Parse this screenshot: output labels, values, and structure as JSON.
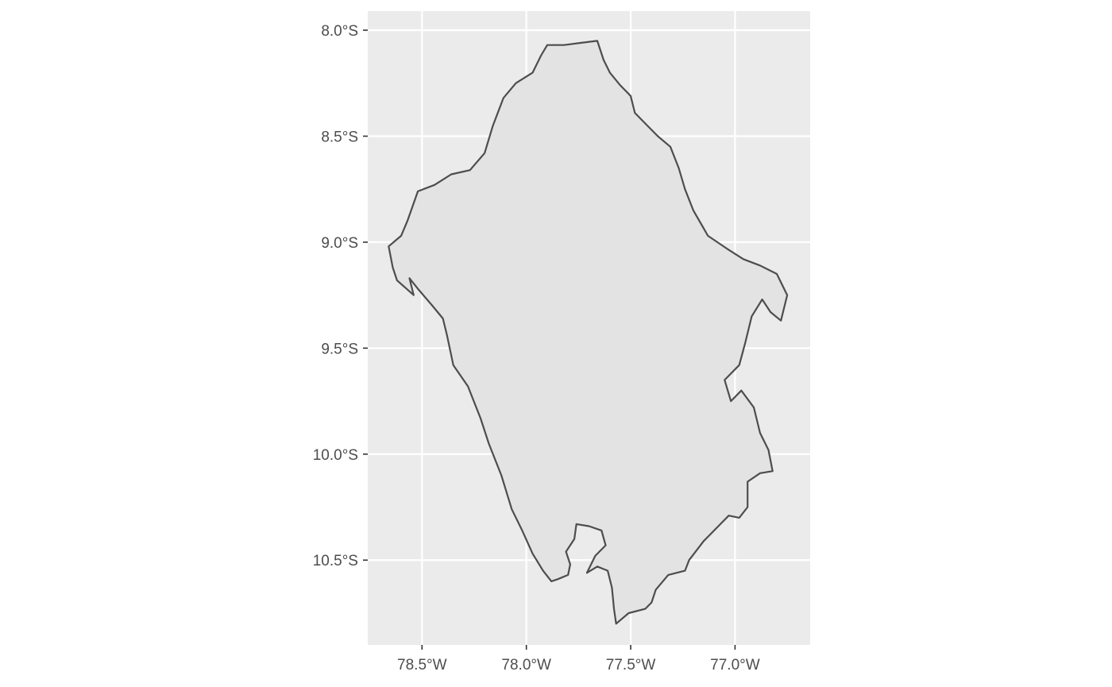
{
  "colors": {
    "panel_background": "#ebebeb",
    "grid": "#ffffff",
    "region_fill": "#e3e3e3",
    "region_outline": "#4d4d4d",
    "tick_text": "#4d4d4d"
  },
  "map": {
    "projection": "longitude / latitude",
    "lon_range": [
      -78.76,
      -76.64
    ],
    "lat_range": [
      -10.9,
      -7.91
    ],
    "grid": true,
    "x_ticks": [
      {
        "value": -78.5,
        "label": "78.5°W"
      },
      {
        "value": -78.0,
        "label": "78.0°W"
      },
      {
        "value": -77.5,
        "label": "77.5°W"
      },
      {
        "value": -77.0,
        "label": "77.0°W"
      }
    ],
    "y_ticks": [
      {
        "value": -8.0,
        "label": "8.0°S"
      },
      {
        "value": -8.5,
        "label": "8.5°S"
      },
      {
        "value": -9.0,
        "label": "9.0°S"
      },
      {
        "value": -9.5,
        "label": "9.5°S"
      },
      {
        "value": -10.0,
        "label": "10.0°S"
      },
      {
        "value": -10.5,
        "label": "10.5°S"
      }
    ],
    "boundary": [
      [
        -77.9,
        -8.07
      ],
      [
        -77.82,
        -8.07
      ],
      [
        -77.74,
        -8.06
      ],
      [
        -77.66,
        -8.05
      ],
      [
        -77.63,
        -8.14
      ],
      [
        -77.6,
        -8.2
      ],
      [
        -77.55,
        -8.26
      ],
      [
        -77.5,
        -8.31
      ],
      [
        -77.48,
        -8.39
      ],
      [
        -77.43,
        -8.44
      ],
      [
        -77.37,
        -8.5
      ],
      [
        -77.31,
        -8.55
      ],
      [
        -77.27,
        -8.65
      ],
      [
        -77.24,
        -8.75
      ],
      [
        -77.2,
        -8.85
      ],
      [
        -77.13,
        -8.97
      ],
      [
        -77.04,
        -9.03
      ],
      [
        -76.96,
        -9.08
      ],
      [
        -76.88,
        -9.11
      ],
      [
        -76.8,
        -9.15
      ],
      [
        -76.75,
        -9.25
      ],
      [
        -76.78,
        -9.37
      ],
      [
        -76.83,
        -9.33
      ],
      [
        -76.87,
        -9.27
      ],
      [
        -76.92,
        -9.35
      ],
      [
        -76.95,
        -9.47
      ],
      [
        -76.98,
        -9.58
      ],
      [
        -77.05,
        -9.65
      ],
      [
        -77.02,
        -9.75
      ],
      [
        -76.97,
        -9.7
      ],
      [
        -76.91,
        -9.78
      ],
      [
        -76.88,
        -9.9
      ],
      [
        -76.84,
        -9.98
      ],
      [
        -76.82,
        -10.08
      ],
      [
        -76.88,
        -10.09
      ],
      [
        -76.94,
        -10.13
      ],
      [
        -76.94,
        -10.25
      ],
      [
        -76.98,
        -10.3
      ],
      [
        -77.03,
        -10.29
      ],
      [
        -77.08,
        -10.34
      ],
      [
        -77.15,
        -10.41
      ],
      [
        -77.22,
        -10.5
      ],
      [
        -77.24,
        -10.55
      ],
      [
        -77.32,
        -10.57
      ],
      [
        -77.38,
        -10.64
      ],
      [
        -77.4,
        -10.7
      ],
      [
        -77.43,
        -10.73
      ],
      [
        -77.51,
        -10.75
      ],
      [
        -77.57,
        -10.8
      ],
      [
        -77.58,
        -10.73
      ],
      [
        -77.59,
        -10.63
      ],
      [
        -77.61,
        -10.55
      ],
      [
        -77.66,
        -10.53
      ],
      [
        -77.71,
        -10.56
      ],
      [
        -77.67,
        -10.48
      ],
      [
        -77.62,
        -10.43
      ],
      [
        -77.64,
        -10.36
      ],
      [
        -77.7,
        -10.34
      ],
      [
        -77.76,
        -10.33
      ],
      [
        -77.77,
        -10.4
      ],
      [
        -77.81,
        -10.46
      ],
      [
        -77.79,
        -10.52
      ],
      [
        -77.8,
        -10.57
      ],
      [
        -77.85,
        -10.59
      ],
      [
        -77.88,
        -10.6
      ],
      [
        -77.92,
        -10.55
      ],
      [
        -77.97,
        -10.47
      ],
      [
        -78.02,
        -10.36
      ],
      [
        -78.07,
        -10.26
      ],
      [
        -78.12,
        -10.1
      ],
      [
        -78.18,
        -9.95
      ],
      [
        -78.22,
        -9.83
      ],
      [
        -78.28,
        -9.68
      ],
      [
        -78.35,
        -9.58
      ],
      [
        -78.38,
        -9.44
      ],
      [
        -78.4,
        -9.36
      ],
      [
        -78.45,
        -9.3
      ],
      [
        -78.52,
        -9.22
      ],
      [
        -78.56,
        -9.17
      ],
      [
        -78.54,
        -9.25
      ],
      [
        -78.62,
        -9.18
      ],
      [
        -78.64,
        -9.12
      ],
      [
        -78.66,
        -9.02
      ],
      [
        -78.6,
        -8.97
      ],
      [
        -78.57,
        -8.9
      ],
      [
        -78.52,
        -8.76
      ],
      [
        -78.44,
        -8.73
      ],
      [
        -78.36,
        -8.68
      ],
      [
        -78.27,
        -8.66
      ],
      [
        -78.2,
        -8.58
      ],
      [
        -78.16,
        -8.45
      ],
      [
        -78.11,
        -8.32
      ],
      [
        -78.05,
        -8.25
      ],
      [
        -77.97,
        -8.2
      ],
      [
        -77.93,
        -8.12
      ],
      [
        -77.9,
        -8.07
      ]
    ]
  }
}
